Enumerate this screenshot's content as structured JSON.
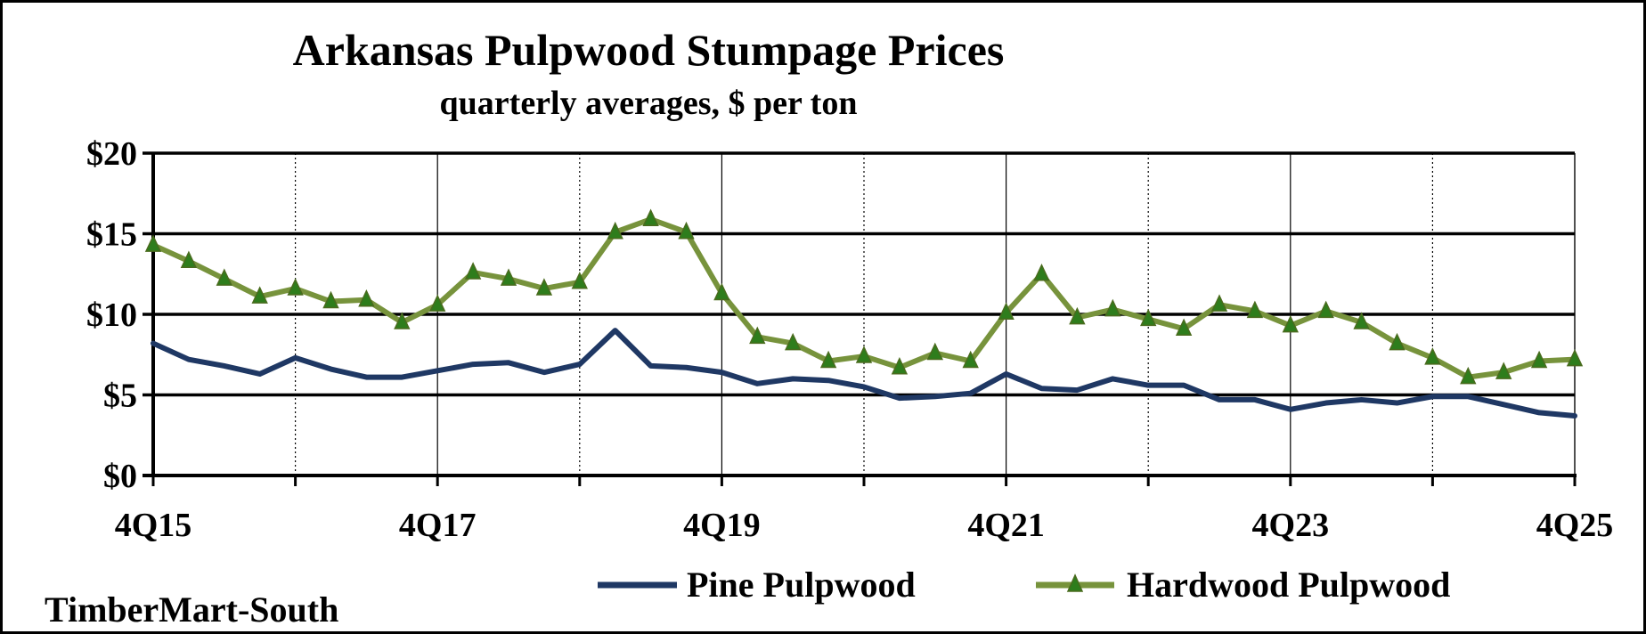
{
  "chart_data": {
    "type": "line",
    "title": "Arkansas Pulpwood Stumpage Prices",
    "subtitle": "quarterly averages, $ per ton",
    "x_tick_labels": [
      "4Q15",
      "4Q17",
      "4Q19",
      "4Q21",
      "4Q23",
      "4Q25"
    ],
    "y_tick_labels": [
      "$0",
      "$5",
      "$10",
      "$15",
      "$20"
    ],
    "y_ticks": [
      0,
      5,
      10,
      15,
      20
    ],
    "ylim": [
      0,
      20
    ],
    "x": [
      "4Q15",
      "1Q16",
      "2Q16",
      "3Q16",
      "4Q16",
      "1Q17",
      "2Q17",
      "3Q17",
      "4Q17",
      "1Q18",
      "2Q18",
      "3Q18",
      "4Q18",
      "1Q19",
      "2Q19",
      "3Q19",
      "4Q19",
      "1Q20",
      "2Q20",
      "3Q20",
      "4Q20",
      "1Q21",
      "2Q21",
      "3Q21",
      "4Q21",
      "1Q22",
      "2Q22",
      "3Q22",
      "4Q22",
      "1Q23",
      "2Q23",
      "3Q23",
      "4Q23",
      "1Q24",
      "2Q24",
      "3Q24",
      "4Q24",
      "1Q25",
      "2Q25",
      "3Q25",
      "4Q25"
    ],
    "grid": true,
    "legend_position": "bottom",
    "series": [
      {
        "name": "Pine Pulpwood",
        "color": "#1f3864",
        "marker": "none",
        "values": [
          8.2,
          7.2,
          6.8,
          6.3,
          7.3,
          6.6,
          6.1,
          6.1,
          6.5,
          6.9,
          7.0,
          6.4,
          6.9,
          9.0,
          6.8,
          6.7,
          6.4,
          5.7,
          6.0,
          5.9,
          5.5,
          4.8,
          4.9,
          5.1,
          6.3,
          5.4,
          5.3,
          6.0,
          5.6,
          5.6,
          4.7,
          4.7,
          4.1,
          4.5,
          4.7,
          4.5,
          4.9,
          4.9,
          4.4,
          3.9,
          3.7
        ]
      },
      {
        "name": "Hardwood Pulpwood",
        "color": "#77933c",
        "marker": "triangle",
        "marker_color": "#2e7d1c",
        "values": [
          14.3,
          13.3,
          12.2,
          11.1,
          11.6,
          10.8,
          10.9,
          9.5,
          10.6,
          12.6,
          12.2,
          11.6,
          12.0,
          15.1,
          15.9,
          15.1,
          11.3,
          8.6,
          8.2,
          7.1,
          7.4,
          6.7,
          7.6,
          7.1,
          10.1,
          12.5,
          9.8,
          10.3,
          9.7,
          9.1,
          10.6,
          10.2,
          9.3,
          10.2,
          9.5,
          8.2,
          7.3,
          6.1,
          6.4,
          7.1,
          7.2
        ]
      }
    ]
  },
  "source_label": "TimberMart-South"
}
